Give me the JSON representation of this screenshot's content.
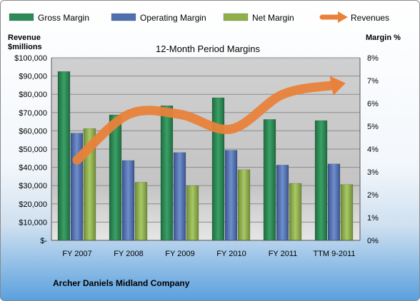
{
  "chart_data": {
    "type": "bar",
    "title": "12-Month Period Margins",
    "categories": [
      "FY 2007",
      "FY 2008",
      "FY 2009",
      "FY 2010",
      "FY 2011",
      "TTM 9-2011"
    ],
    "series": [
      {
        "name": "Gross Margin",
        "axis": "right",
        "type": "bar",
        "color": "#2e8b57",
        "values": [
          7.4,
          5.5,
          5.9,
          6.25,
          5.3,
          5.25
        ]
      },
      {
        "name": "Operating Margin",
        "axis": "right",
        "type": "bar",
        "color": "#4f6fae",
        "values": [
          4.7,
          3.5,
          3.85,
          3.95,
          3.3,
          3.35
        ]
      },
      {
        "name": "Net Margin",
        "axis": "right",
        "type": "bar",
        "color": "#8fb04a",
        "values": [
          4.9,
          2.55,
          2.4,
          3.1,
          2.5,
          2.45
        ]
      },
      {
        "name": "Revenues",
        "axis": "left",
        "type": "line",
        "color": "#e8823a",
        "values": [
          44000,
          69000,
          69000,
          61000,
          80000,
          85000
        ]
      }
    ],
    "ylabel_left": [
      "Revenue",
      "$millions"
    ],
    "ylabel_right": "Margin %",
    "ylim_left": [
      0,
      100000
    ],
    "ylim_right": [
      0,
      8
    ],
    "yticks_left": [
      "$-",
      "$10,000",
      "$20,000",
      "$30,000",
      "$40,000",
      "$50,000",
      "$60,000",
      "$70,000",
      "$80,000",
      "$90,000",
      "$100,000"
    ],
    "yticks_right": [
      "0%",
      "1%",
      "2%",
      "3%",
      "4%",
      "5%",
      "6%",
      "7%",
      "8%"
    ],
    "grid": true,
    "legend_position": "top"
  },
  "footer": {
    "company": "Archer Daniels Midland Company"
  },
  "colors": {
    "plot_bg": "#c8c8c8",
    "gridline": "#8c8c8c"
  }
}
